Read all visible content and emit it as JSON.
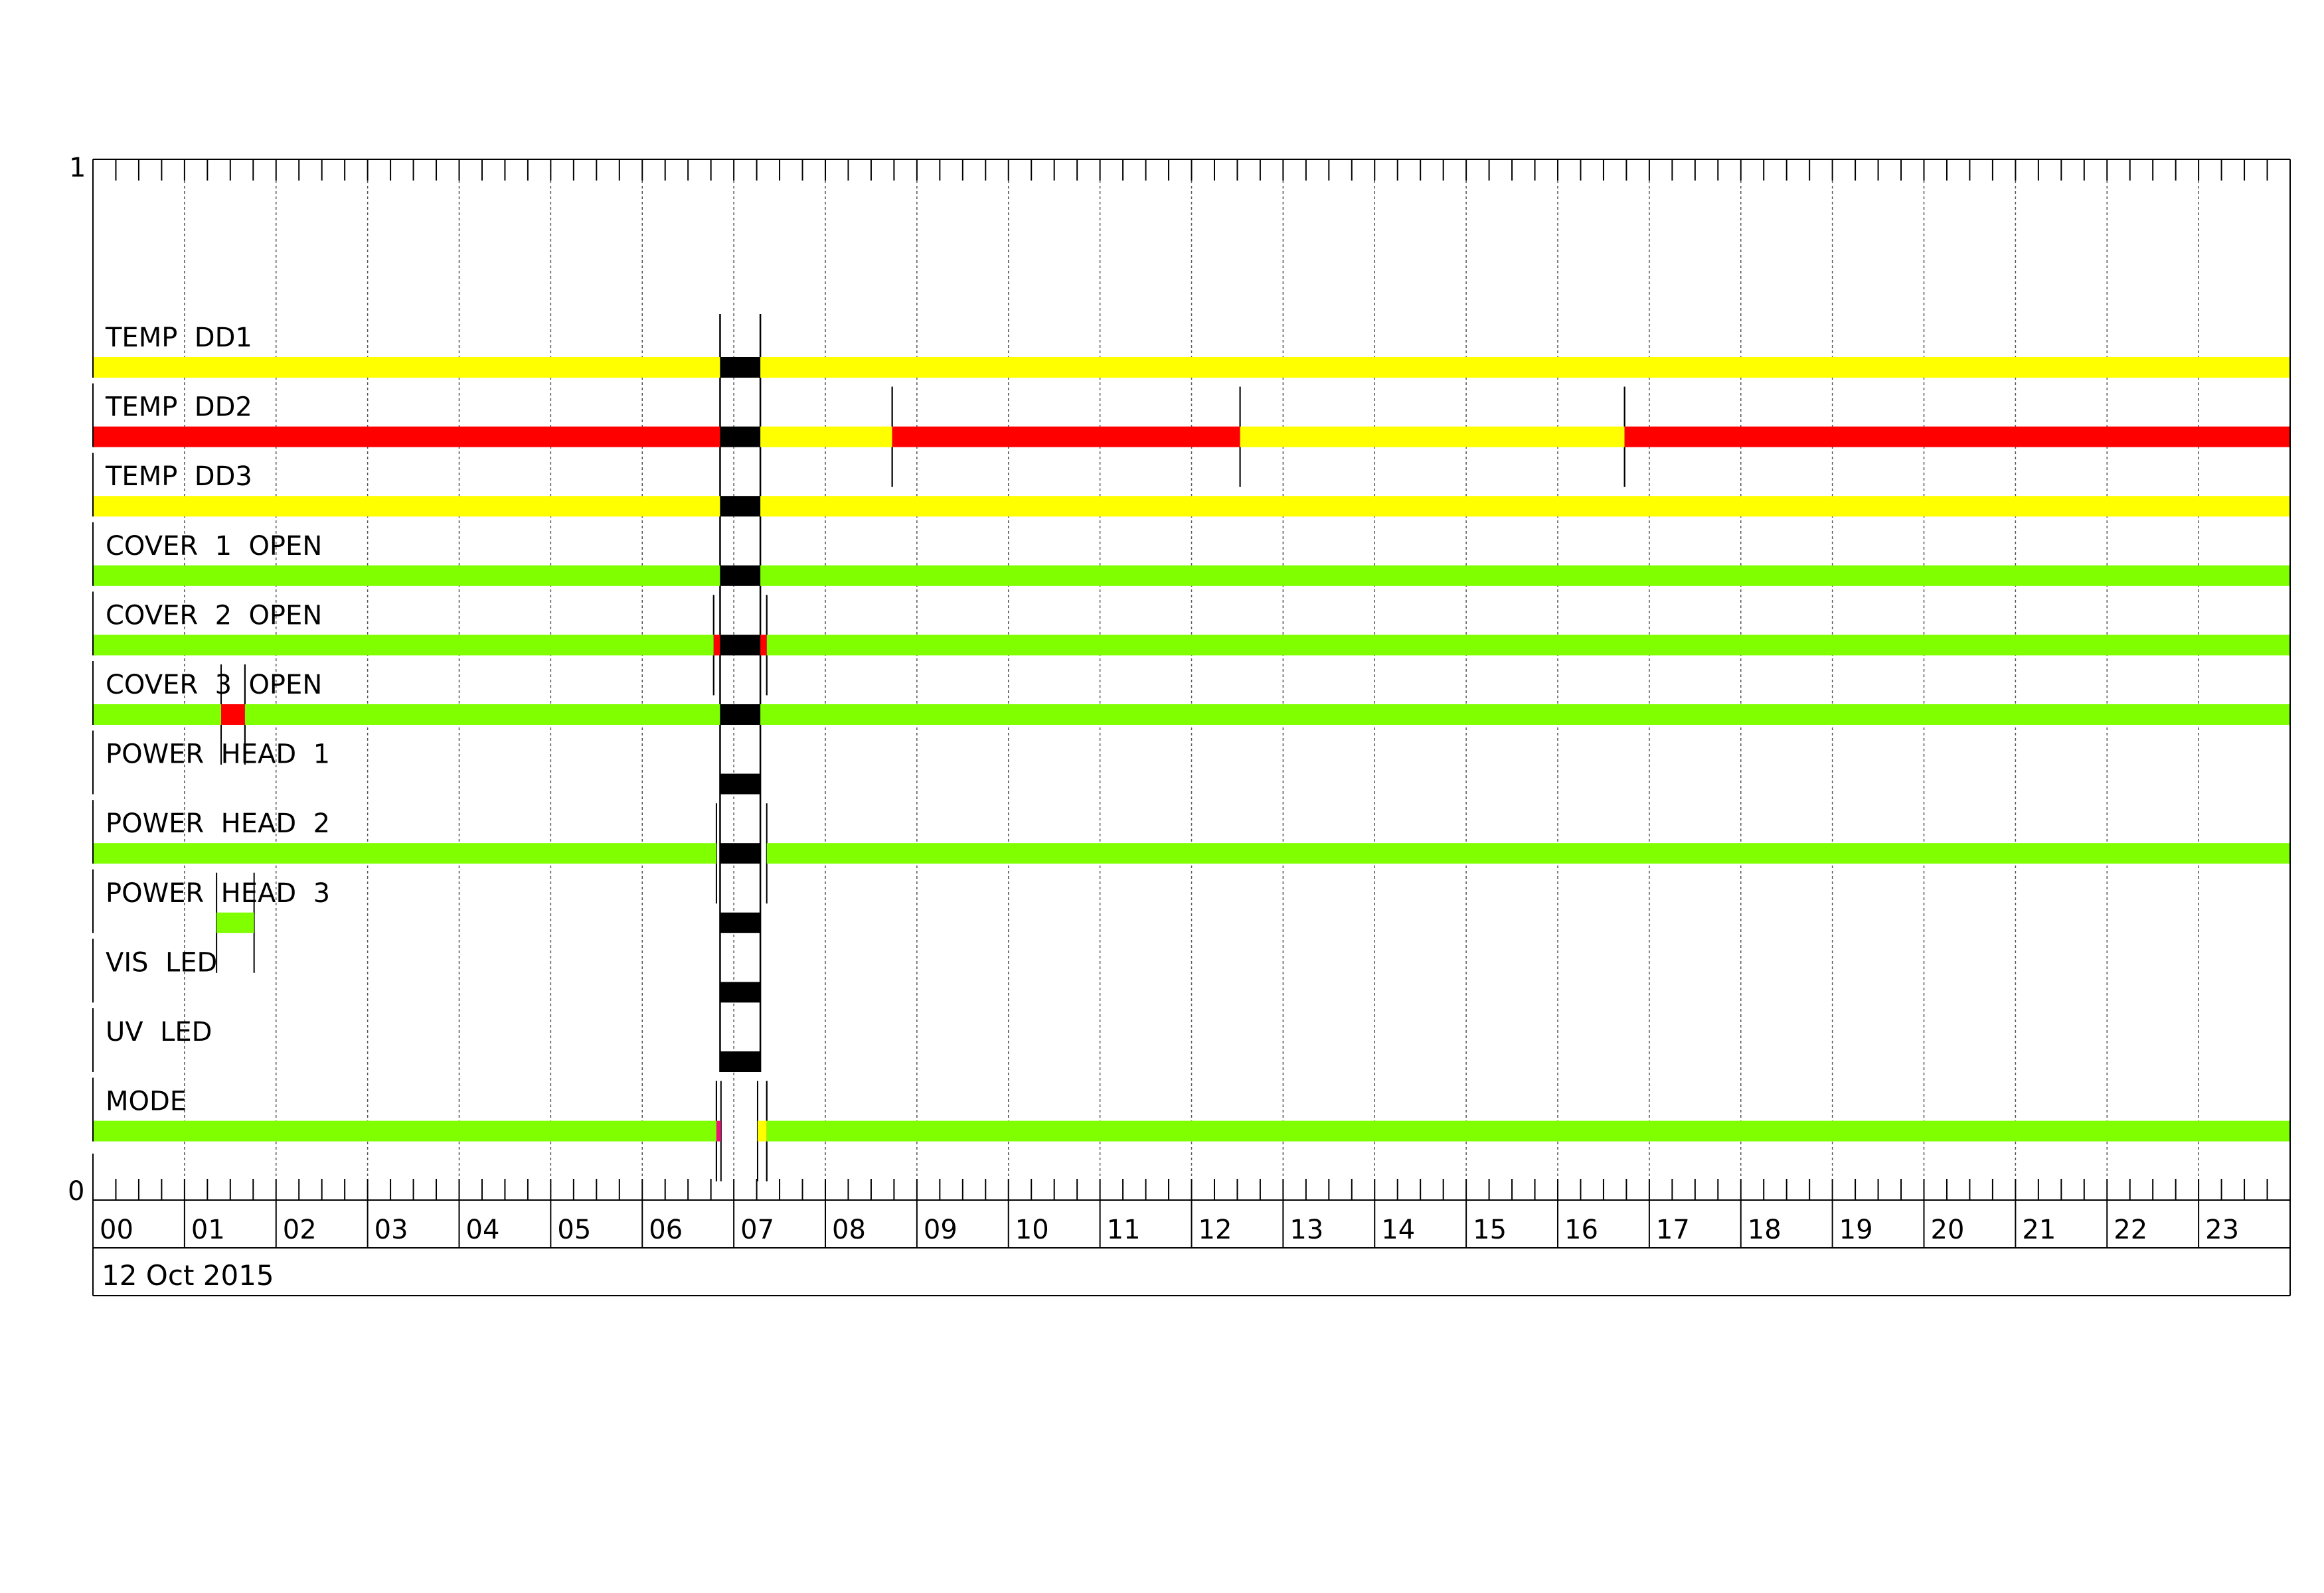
{
  "chart_data": {
    "type": "bar",
    "orientation": "horizontal-timeline",
    "y_axis_ticks": [
      "1",
      "0"
    ],
    "x_axis": {
      "unit": "hour",
      "range": [
        0,
        24
      ],
      "tick_labels": [
        "00",
        "01",
        "02",
        "03",
        "04",
        "05",
        "06",
        "07",
        "08",
        "09",
        "10",
        "11",
        "12",
        "13",
        "14",
        "15",
        "16",
        "17",
        "18",
        "19",
        "20",
        "21",
        "22",
        "23"
      ],
      "minor_ticks_per_hour": 4,
      "grid": true
    },
    "date_label": "12 Oct 2015",
    "colors": {
      "yellow": "#ffff00",
      "red": "#ff0000",
      "green": "#7fff00",
      "magenta": "#f0107a",
      "black": "#000000"
    },
    "rows": [
      {
        "label": "TEMP  DD1",
        "segments": [
          {
            "start": 0,
            "end": 6.85,
            "state": "yellow"
          },
          {
            "start": 6.85,
            "end": 7.29,
            "state": "black"
          },
          {
            "start": 7.29,
            "end": 24,
            "state": "yellow"
          }
        ]
      },
      {
        "label": "TEMP  DD2",
        "segments": [
          {
            "start": 0,
            "end": 6.85,
            "state": "red"
          },
          {
            "start": 6.85,
            "end": 7.29,
            "state": "black"
          },
          {
            "start": 7.29,
            "end": 8.73,
            "state": "yellow"
          },
          {
            "start": 8.73,
            "end": 12.53,
            "state": "red"
          },
          {
            "start": 12.53,
            "end": 16.73,
            "state": "yellow"
          },
          {
            "start": 16.73,
            "end": 24,
            "state": "red"
          }
        ]
      },
      {
        "label": "TEMP  DD3",
        "segments": [
          {
            "start": 0,
            "end": 6.85,
            "state": "yellow"
          },
          {
            "start": 6.85,
            "end": 7.29,
            "state": "black"
          },
          {
            "start": 7.29,
            "end": 24,
            "state": "yellow"
          }
        ]
      },
      {
        "label": "COVER  1  OPEN",
        "segments": [
          {
            "start": 0,
            "end": 6.85,
            "state": "green"
          },
          {
            "start": 6.85,
            "end": 7.29,
            "state": "black"
          },
          {
            "start": 7.29,
            "end": 24,
            "state": "green"
          }
        ]
      },
      {
        "label": "COVER  2  OPEN",
        "segments": [
          {
            "start": 0,
            "end": 6.78,
            "state": "green"
          },
          {
            "start": 6.78,
            "end": 6.85,
            "state": "red"
          },
          {
            "start": 6.85,
            "end": 7.29,
            "state": "black"
          },
          {
            "start": 7.29,
            "end": 7.36,
            "state": "red"
          },
          {
            "start": 7.36,
            "end": 24,
            "state": "green"
          }
        ]
      },
      {
        "label": "COVER  3  OPEN",
        "segments": [
          {
            "start": 0,
            "end": 1.4,
            "state": "green"
          },
          {
            "start": 1.4,
            "end": 1.66,
            "state": "red"
          },
          {
            "start": 1.66,
            "end": 6.85,
            "state": "green"
          },
          {
            "start": 6.85,
            "end": 7.29,
            "state": "black"
          },
          {
            "start": 7.29,
            "end": 24,
            "state": "green"
          }
        ]
      },
      {
        "label": "POWER  HEAD  1",
        "segments": [
          {
            "start": 6.85,
            "end": 7.29,
            "state": "black"
          }
        ]
      },
      {
        "label": "POWER  HEAD  2",
        "segments": [
          {
            "start": 0,
            "end": 6.81,
            "state": "green"
          },
          {
            "start": 6.85,
            "end": 7.29,
            "state": "black"
          },
          {
            "start": 7.36,
            "end": 24,
            "state": "green"
          }
        ]
      },
      {
        "label": "POWER  HEAD  3",
        "segments": [
          {
            "start": 1.35,
            "end": 1.76,
            "state": "green"
          },
          {
            "start": 6.85,
            "end": 7.29,
            "state": "black"
          }
        ]
      },
      {
        "label": "VIS  LED",
        "segments": [
          {
            "start": 6.85,
            "end": 7.29,
            "state": "black"
          }
        ]
      },
      {
        "label": "UV  LED",
        "segments": [
          {
            "start": 6.85,
            "end": 7.29,
            "state": "black"
          }
        ]
      },
      {
        "label": "MODE",
        "segments": [
          {
            "start": 0,
            "end": 6.81,
            "state": "green"
          },
          {
            "start": 6.81,
            "end": 6.86,
            "state": "magenta"
          },
          {
            "start": 7.26,
            "end": 7.36,
            "state": "yellow"
          },
          {
            "start": 7.36,
            "end": 24,
            "state": "green"
          }
        ]
      }
    ]
  }
}
